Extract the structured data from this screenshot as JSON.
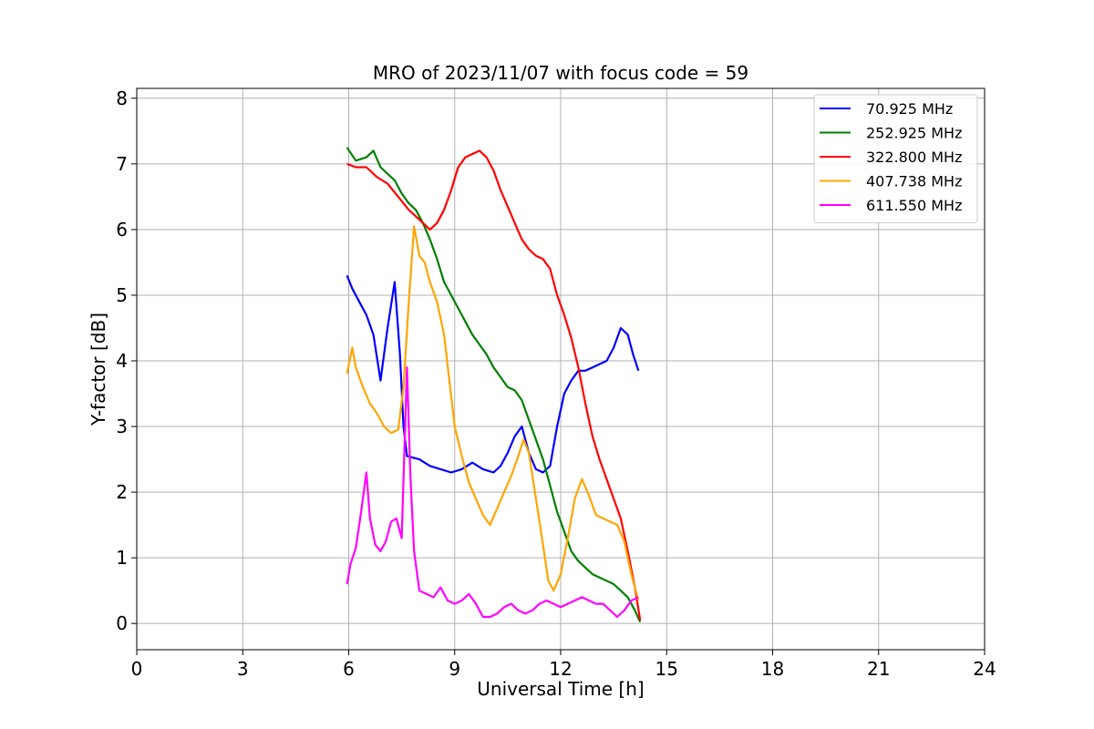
{
  "chart_data": {
    "type": "line",
    "title": "MRO of 2023/11/07 with focus code = 59",
    "xlabel": "Universal Time [h]",
    "ylabel": "Y-factor [dB]",
    "xlim": [
      0,
      24
    ],
    "ylim": [
      -0.4,
      8.15
    ],
    "xticks": [
      0,
      3,
      6,
      9,
      12,
      15,
      18,
      21,
      24
    ],
    "yticks": [
      0,
      1,
      2,
      3,
      4,
      5,
      6,
      7,
      8
    ],
    "grid": true,
    "legend_position": "top-right",
    "series": [
      {
        "name": " 70.925 MHz",
        "color": "#0000ff",
        "points": [
          [
            5.95,
            5.3
          ],
          [
            6.1,
            5.1
          ],
          [
            6.3,
            4.9
          ],
          [
            6.5,
            4.7
          ],
          [
            6.7,
            4.4
          ],
          [
            6.9,
            3.7
          ],
          [
            7.1,
            4.5
          ],
          [
            7.3,
            5.2
          ],
          [
            7.45,
            4.1
          ],
          [
            7.55,
            3.0
          ],
          [
            7.65,
            2.55
          ],
          [
            8.0,
            2.5
          ],
          [
            8.3,
            2.4
          ],
          [
            8.6,
            2.35
          ],
          [
            8.9,
            2.3
          ],
          [
            9.2,
            2.35
          ],
          [
            9.5,
            2.45
          ],
          [
            9.8,
            2.35
          ],
          [
            10.1,
            2.3
          ],
          [
            10.3,
            2.4
          ],
          [
            10.5,
            2.6
          ],
          [
            10.7,
            2.85
          ],
          [
            10.9,
            3.0
          ],
          [
            11.1,
            2.6
          ],
          [
            11.3,
            2.35
          ],
          [
            11.5,
            2.3
          ],
          [
            11.7,
            2.4
          ],
          [
            11.9,
            3.0
          ],
          [
            12.1,
            3.5
          ],
          [
            12.3,
            3.7
          ],
          [
            12.5,
            3.85
          ],
          [
            12.7,
            3.85
          ],
          [
            12.9,
            3.9
          ],
          [
            13.1,
            3.95
          ],
          [
            13.3,
            4.0
          ],
          [
            13.5,
            4.2
          ],
          [
            13.7,
            4.5
          ],
          [
            13.9,
            4.4
          ],
          [
            14.05,
            4.1
          ],
          [
            14.2,
            3.85
          ]
        ]
      },
      {
        "name": "252.925 MHz",
        "color": "#008000",
        "points": [
          [
            5.95,
            7.25
          ],
          [
            6.2,
            7.05
          ],
          [
            6.5,
            7.1
          ],
          [
            6.7,
            7.2
          ],
          [
            6.9,
            6.95
          ],
          [
            7.1,
            6.85
          ],
          [
            7.3,
            6.75
          ],
          [
            7.5,
            6.55
          ],
          [
            7.7,
            6.4
          ],
          [
            7.9,
            6.3
          ],
          [
            8.1,
            6.1
          ],
          [
            8.3,
            5.85
          ],
          [
            8.5,
            5.55
          ],
          [
            8.7,
            5.2
          ],
          [
            8.9,
            5.0
          ],
          [
            9.1,
            4.8
          ],
          [
            9.3,
            4.6
          ],
          [
            9.5,
            4.4
          ],
          [
            9.7,
            4.25
          ],
          [
            9.9,
            4.1
          ],
          [
            10.1,
            3.9
          ],
          [
            10.3,
            3.75
          ],
          [
            10.5,
            3.6
          ],
          [
            10.7,
            3.55
          ],
          [
            10.9,
            3.4
          ],
          [
            11.1,
            3.1
          ],
          [
            11.3,
            2.8
          ],
          [
            11.5,
            2.5
          ],
          [
            11.7,
            2.1
          ],
          [
            11.9,
            1.7
          ],
          [
            12.1,
            1.4
          ],
          [
            12.3,
            1.1
          ],
          [
            12.5,
            0.95
          ],
          [
            12.7,
            0.85
          ],
          [
            12.9,
            0.75
          ],
          [
            13.1,
            0.7
          ],
          [
            13.3,
            0.65
          ],
          [
            13.5,
            0.6
          ],
          [
            13.7,
            0.5
          ],
          [
            13.9,
            0.4
          ],
          [
            14.1,
            0.2
          ],
          [
            14.25,
            0.02
          ]
        ]
      },
      {
        "name": "322.800 MHz",
        "color": "#ff0000",
        "points": [
          [
            5.95,
            7.0
          ],
          [
            6.2,
            6.95
          ],
          [
            6.5,
            6.95
          ],
          [
            6.8,
            6.8
          ],
          [
            7.1,
            6.7
          ],
          [
            7.4,
            6.5
          ],
          [
            7.7,
            6.3
          ],
          [
            8.0,
            6.15
          ],
          [
            8.3,
            6.0
          ],
          [
            8.5,
            6.1
          ],
          [
            8.7,
            6.3
          ],
          [
            8.9,
            6.6
          ],
          [
            9.1,
            6.95
          ],
          [
            9.3,
            7.1
          ],
          [
            9.5,
            7.15
          ],
          [
            9.7,
            7.2
          ],
          [
            9.9,
            7.1
          ],
          [
            10.1,
            6.9
          ],
          [
            10.3,
            6.6
          ],
          [
            10.5,
            6.35
          ],
          [
            10.7,
            6.1
          ],
          [
            10.9,
            5.85
          ],
          [
            11.1,
            5.7
          ],
          [
            11.3,
            5.6
          ],
          [
            11.5,
            5.55
          ],
          [
            11.7,
            5.4
          ],
          [
            11.9,
            5.0
          ],
          [
            12.1,
            4.7
          ],
          [
            12.3,
            4.35
          ],
          [
            12.5,
            3.9
          ],
          [
            12.7,
            3.35
          ],
          [
            12.9,
            2.85
          ],
          [
            13.1,
            2.5
          ],
          [
            13.3,
            2.2
          ],
          [
            13.5,
            1.9
          ],
          [
            13.7,
            1.6
          ],
          [
            13.9,
            1.1
          ],
          [
            14.1,
            0.55
          ],
          [
            14.25,
            0.05
          ]
        ]
      },
      {
        "name": "407.738 MHz",
        "color": "#ffa500",
        "points": [
          [
            5.95,
            3.8
          ],
          [
            6.1,
            4.2
          ],
          [
            6.2,
            3.9
          ],
          [
            6.4,
            3.6
          ],
          [
            6.6,
            3.35
          ],
          [
            6.8,
            3.2
          ],
          [
            7.0,
            3.0
          ],
          [
            7.2,
            2.9
          ],
          [
            7.4,
            2.95
          ],
          [
            7.55,
            3.6
          ],
          [
            7.7,
            4.9
          ],
          [
            7.85,
            6.05
          ],
          [
            8.0,
            5.6
          ],
          [
            8.15,
            5.5
          ],
          [
            8.3,
            5.2
          ],
          [
            8.5,
            4.9
          ],
          [
            8.7,
            4.4
          ],
          [
            8.85,
            3.7
          ],
          [
            9.0,
            3.0
          ],
          [
            9.2,
            2.55
          ],
          [
            9.4,
            2.15
          ],
          [
            9.6,
            1.9
          ],
          [
            9.8,
            1.65
          ],
          [
            10.0,
            1.5
          ],
          [
            10.2,
            1.75
          ],
          [
            10.4,
            2.0
          ],
          [
            10.6,
            2.25
          ],
          [
            10.8,
            2.55
          ],
          [
            10.95,
            2.8
          ],
          [
            11.1,
            2.6
          ],
          [
            11.3,
            1.9
          ],
          [
            11.5,
            1.2
          ],
          [
            11.65,
            0.65
          ],
          [
            11.8,
            0.5
          ],
          [
            12.0,
            0.75
          ],
          [
            12.2,
            1.3
          ],
          [
            12.4,
            1.9
          ],
          [
            12.6,
            2.2
          ],
          [
            12.8,
            1.95
          ],
          [
            13.0,
            1.65
          ],
          [
            13.2,
            1.6
          ],
          [
            13.4,
            1.55
          ],
          [
            13.6,
            1.5
          ],
          [
            13.8,
            1.25
          ],
          [
            14.0,
            0.75
          ],
          [
            14.2,
            0.35
          ]
        ]
      },
      {
        "name": "611.550 MHz",
        "color": "#ff00ff",
        "points": [
          [
            5.95,
            0.6
          ],
          [
            6.05,
            0.9
          ],
          [
            6.2,
            1.15
          ],
          [
            6.35,
            1.7
          ],
          [
            6.5,
            2.3
          ],
          [
            6.6,
            1.6
          ],
          [
            6.75,
            1.2
          ],
          [
            6.9,
            1.1
          ],
          [
            7.05,
            1.25
          ],
          [
            7.2,
            1.55
          ],
          [
            7.35,
            1.6
          ],
          [
            7.5,
            1.3
          ],
          [
            7.65,
            3.9
          ],
          [
            7.75,
            2.2
          ],
          [
            7.85,
            1.1
          ],
          [
            8.0,
            0.5
          ],
          [
            8.2,
            0.45
          ],
          [
            8.4,
            0.4
          ],
          [
            8.6,
            0.55
          ],
          [
            8.8,
            0.35
          ],
          [
            9.0,
            0.3
          ],
          [
            9.2,
            0.35
          ],
          [
            9.4,
            0.45
          ],
          [
            9.6,
            0.3
          ],
          [
            9.8,
            0.1
          ],
          [
            10.0,
            0.1
          ],
          [
            10.2,
            0.15
          ],
          [
            10.4,
            0.25
          ],
          [
            10.6,
            0.3
          ],
          [
            10.8,
            0.2
          ],
          [
            11.0,
            0.15
          ],
          [
            11.2,
            0.2
          ],
          [
            11.4,
            0.3
          ],
          [
            11.6,
            0.35
          ],
          [
            11.8,
            0.3
          ],
          [
            12.0,
            0.25
          ],
          [
            12.2,
            0.3
          ],
          [
            12.4,
            0.35
          ],
          [
            12.6,
            0.4
          ],
          [
            12.8,
            0.35
          ],
          [
            13.0,
            0.3
          ],
          [
            13.2,
            0.3
          ],
          [
            13.4,
            0.2
          ],
          [
            13.6,
            0.1
          ],
          [
            13.8,
            0.2
          ],
          [
            14.0,
            0.35
          ],
          [
            14.2,
            0.4
          ]
        ]
      }
    ]
  }
}
